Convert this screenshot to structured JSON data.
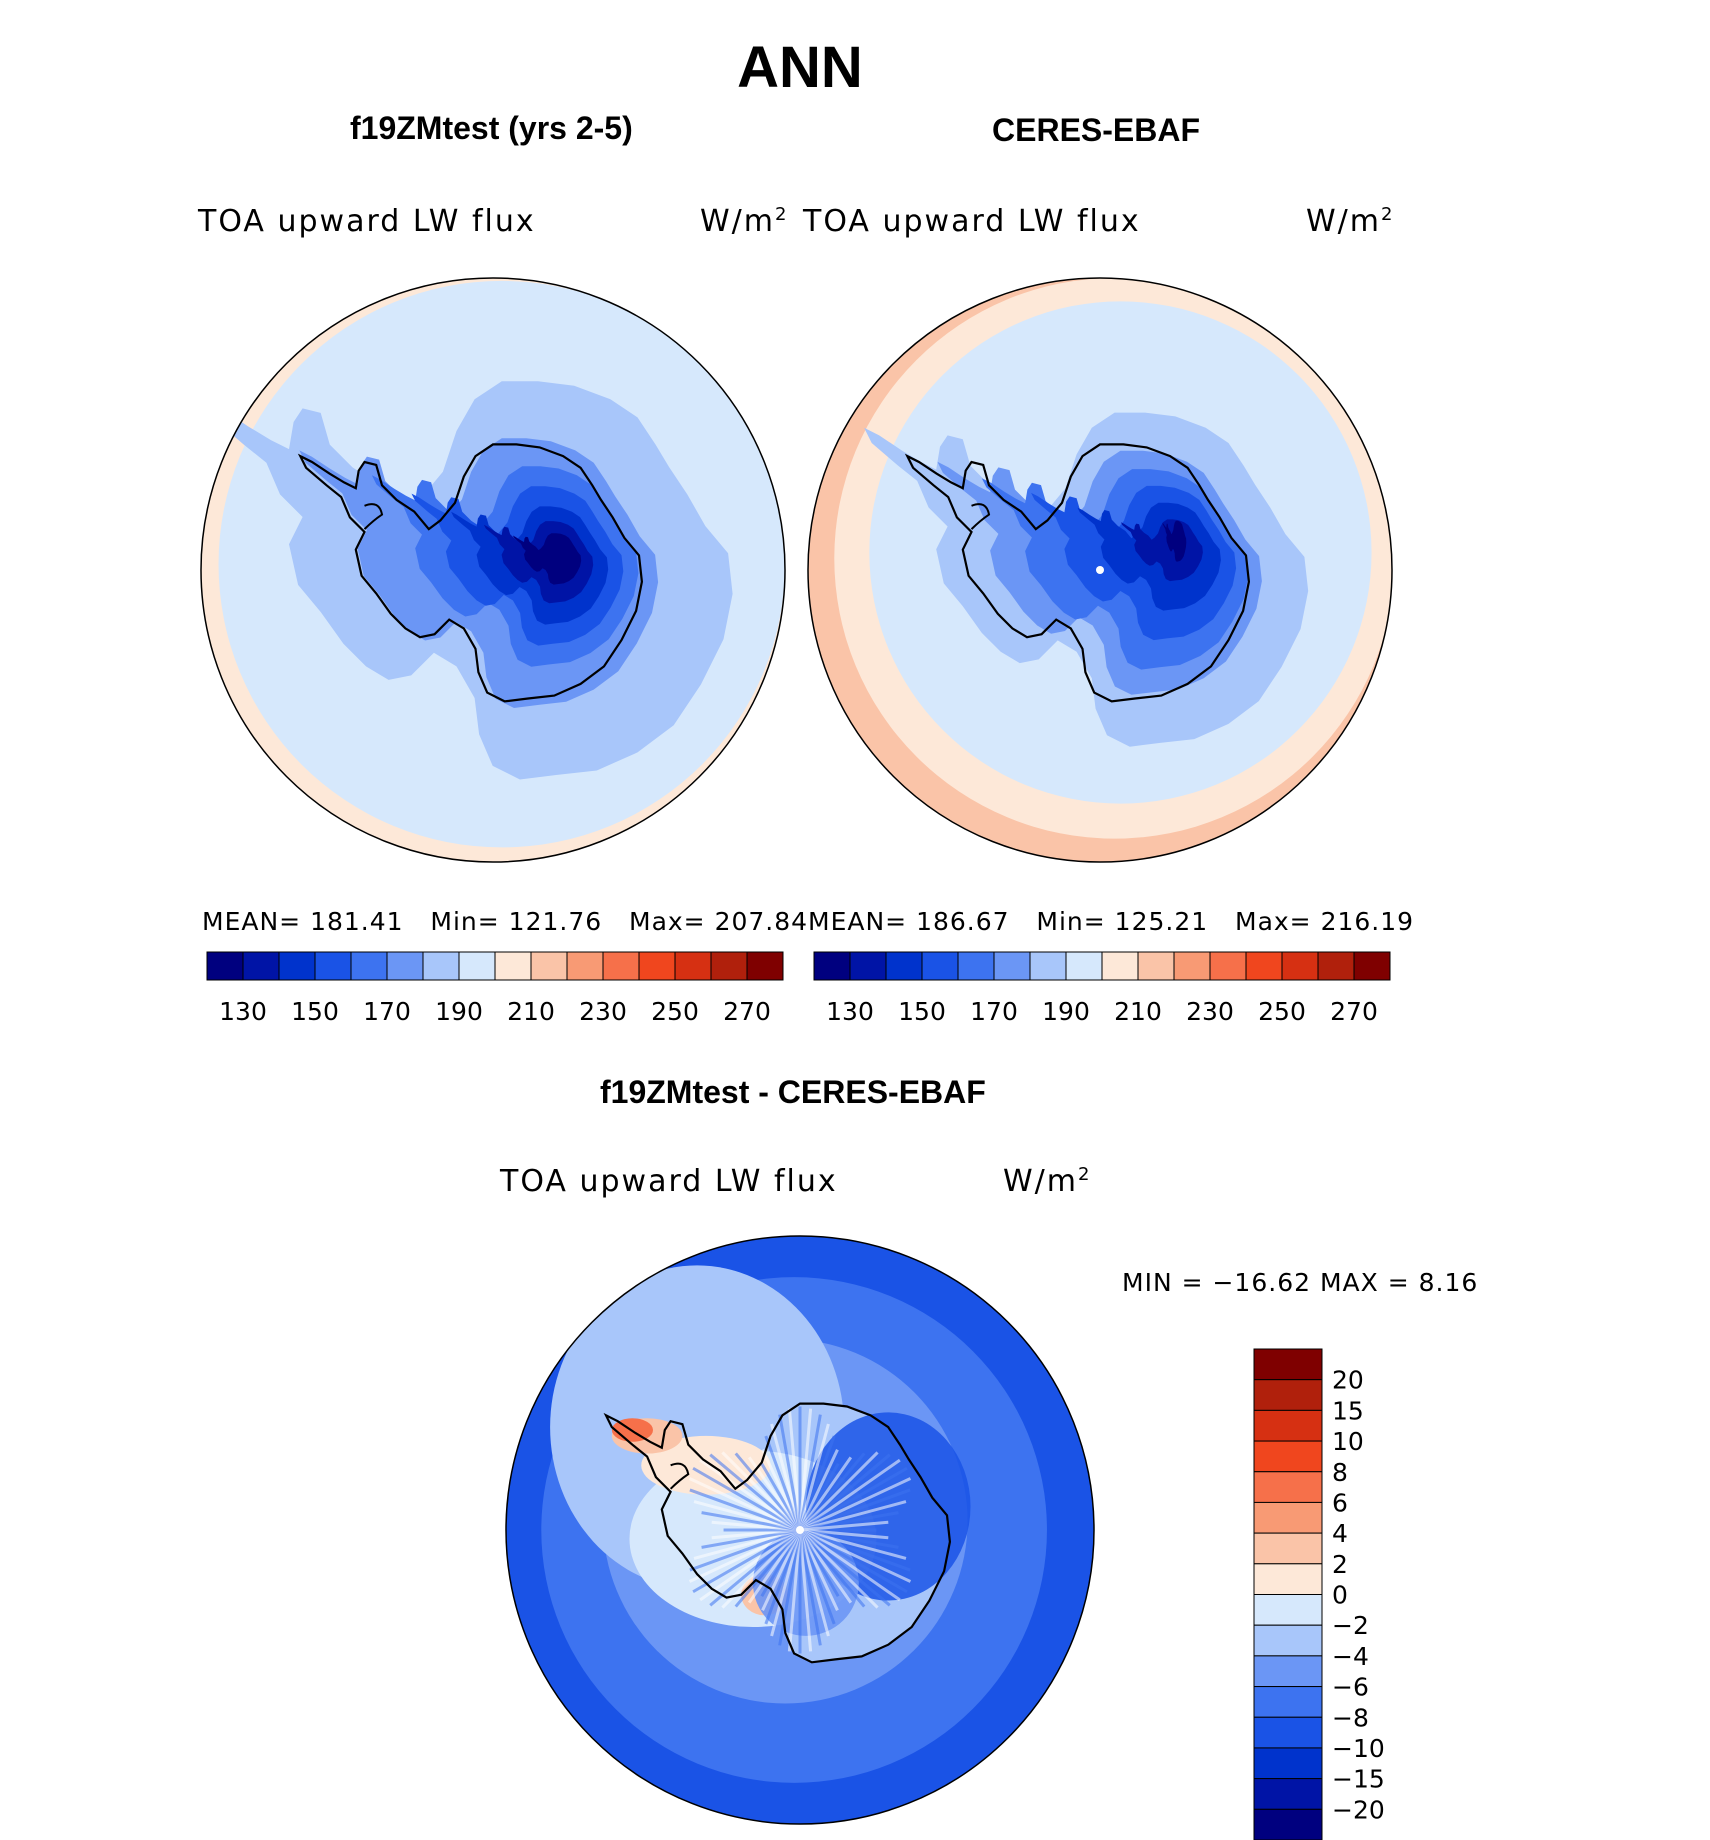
{
  "title": "ANN",
  "panels": [
    {
      "case": "f19ZMtest (yrs 2-5)",
      "variable": "TOA upward LW flux",
      "units": "W/m",
      "units_exp": "2",
      "stats": {
        "mean_label": "MEAN=",
        "mean": "181.41",
        "min_label": "Min=",
        "min": "121.76",
        "max_label": "Max=",
        "max": "207.84"
      }
    },
    {
      "case": "CERES-EBAF",
      "variable": "TOA upward LW flux",
      "units": "W/m",
      "units_exp": "2",
      "stats": {
        "mean_label": "MEAN=",
        "mean": "186.67",
        "min_label": "Min=",
        "min": "125.21",
        "max_label": "Max=",
        "max": "216.19"
      }
    }
  ],
  "diff": {
    "title": "f19ZMtest - CERES-EBAF",
    "variable": "TOA upward LW flux",
    "units": "W/m",
    "units_exp": "2",
    "minmax": "MIN = −16.62 MAX =    8.16"
  },
  "chart_data": [
    {
      "type": "heatmap",
      "projection": "south polar stereographic",
      "title": "f19ZMtest (yrs 2-5)",
      "variable": "TOA upward LW flux",
      "units": "W/m2",
      "mean": 181.41,
      "min": 121.76,
      "max": 207.84,
      "contour_levels": [
        130,
        140,
        150,
        160,
        170,
        180,
        190,
        200,
        210,
        220,
        230,
        240,
        250,
        260,
        270
      ],
      "colorbar_tick_labels": [
        "130",
        "150",
        "170",
        "190",
        "210",
        "230",
        "250",
        "270"
      ],
      "colors": [
        "#00007f",
        "#0014a6",
        "#0033cc",
        "#1a53e6",
        "#3d73f0",
        "#6b96f5",
        "#a8c6fa",
        "#d6e8fc",
        "#fde8d8",
        "#fac4a8",
        "#f89a74",
        "#f6704a",
        "#f0461e",
        "#d63012",
        "#b0200c",
        "#7f0000"
      ]
    },
    {
      "type": "heatmap",
      "projection": "south polar stereographic",
      "title": "CERES-EBAF",
      "variable": "TOA upward LW flux",
      "units": "W/m2",
      "mean": 186.67,
      "min": 125.21,
      "max": 216.19,
      "contour_levels": [
        130,
        140,
        150,
        160,
        170,
        180,
        190,
        200,
        210,
        220,
        230,
        240,
        250,
        260,
        270
      ],
      "colorbar_tick_labels": [
        "130",
        "150",
        "170",
        "190",
        "210",
        "230",
        "250",
        "270"
      ],
      "colors": [
        "#00007f",
        "#0014a6",
        "#0033cc",
        "#1a53e6",
        "#3d73f0",
        "#6b96f5",
        "#a8c6fa",
        "#d6e8fc",
        "#fde8d8",
        "#fac4a8",
        "#f89a74",
        "#f6704a",
        "#f0461e",
        "#d63012",
        "#b0200c",
        "#7f0000"
      ]
    },
    {
      "type": "heatmap",
      "projection": "south polar stereographic",
      "title": "f19ZMtest - CERES-EBAF",
      "variable": "TOA upward LW flux",
      "units": "W/m2",
      "min": -16.62,
      "max": 8.16,
      "contour_levels": [
        -20,
        -15,
        -10,
        -8,
        -6,
        -4,
        -2,
        0,
        2,
        4,
        6,
        8,
        10,
        15,
        20
      ],
      "colorbar_tick_labels": [
        "20",
        "15",
        "10",
        "8",
        "6",
        "4",
        "2",
        "0",
        "−2",
        "−4",
        "−6",
        "−8",
        "−10",
        "−15",
        "−20"
      ],
      "colors": [
        "#7f0000",
        "#b0200c",
        "#d63012",
        "#f0461e",
        "#f6704a",
        "#f89a74",
        "#fac4a8",
        "#fde8d8",
        "#d6e8fc",
        "#a8c6fa",
        "#6b96f5",
        "#3d73f0",
        "#1a53e6",
        "#0033cc",
        "#0014a6",
        "#00007f"
      ]
    }
  ]
}
